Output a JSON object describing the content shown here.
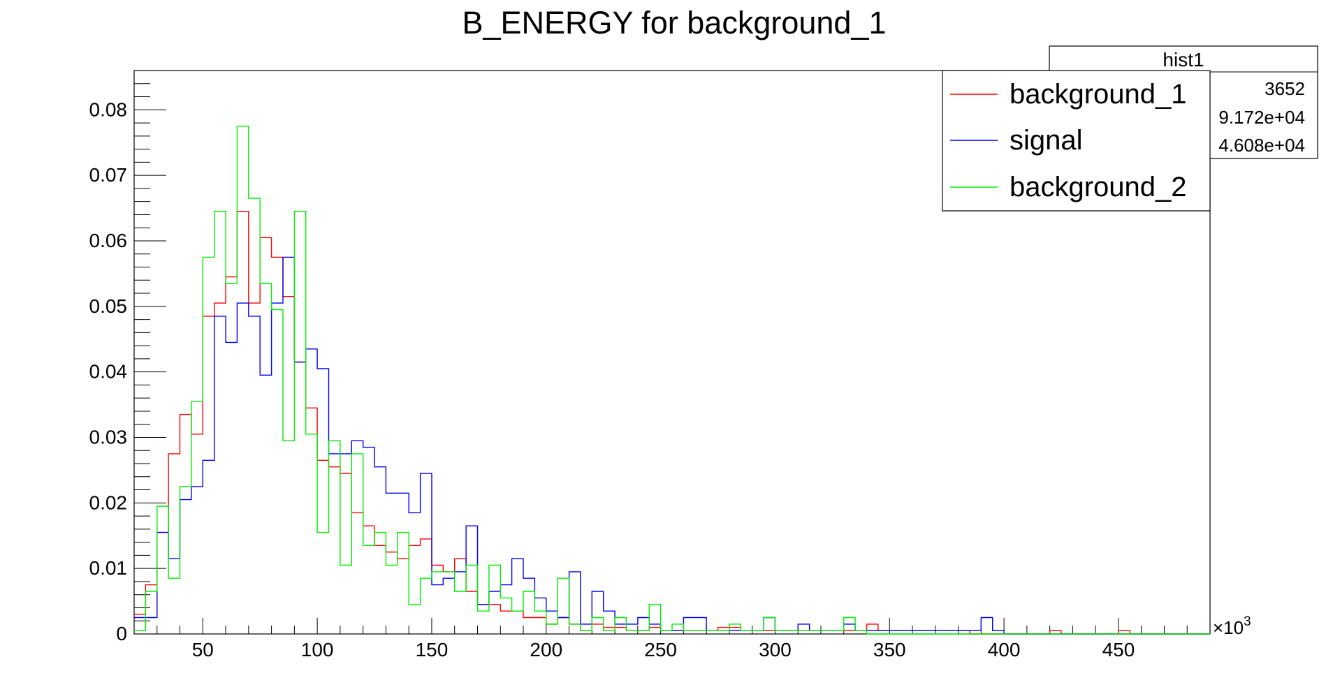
{
  "chart_data": {
    "type": "histogram",
    "title": "B_ENERGY for background_1",
    "xlabel": "",
    "ylabel": "",
    "xlim": [
      20,
      490
    ],
    "ylim": [
      0,
      0.086
    ],
    "x_scale_label": "×10",
    "x_scale_exponent": "3",
    "x_ticks": [
      "50",
      "100",
      "150",
      "200",
      "250",
      "300",
      "350",
      "400",
      "450"
    ],
    "y_ticks": [
      "0",
      "0.01",
      "0.02",
      "0.03",
      "0.04",
      "0.05",
      "0.06",
      "0.07",
      "0.08"
    ],
    "bin_start": 20,
    "bin_width": 5,
    "stats_box": {
      "title": "hist1",
      "values": [
        "3652",
        "9.172e+04",
        "4.608e+04"
      ]
    },
    "legend": {
      "position": "top-right",
      "entries": [
        "background_1",
        "signal",
        "background_2"
      ]
    },
    "series": [
      {
        "name": "background_1",
        "color": "#ff0000",
        "values": [
          0.003,
          0.0075,
          0.0155,
          0.0275,
          0.0335,
          0.0305,
          0.0485,
          0.0505,
          0.0545,
          0.0645,
          0.0505,
          0.0605,
          0.0575,
          0.0515,
          0.0415,
          0.0345,
          0.0265,
          0.0255,
          0.0245,
          0.0185,
          0.0165,
          0.0135,
          0.0125,
          0.0115,
          0.0135,
          0.0145,
          0.0105,
          0.0095,
          0.0115,
          0.0065,
          0.0045,
          0.0045,
          0.0035,
          0.0035,
          0.0025,
          0.0025,
          0.0015,
          0.0025,
          0.0015,
          0.0005,
          0.0015,
          0.001,
          0.001,
          0.0005,
          0.0005,
          0.001,
          0.0005,
          0.0005,
          0.0005,
          0.0005,
          0.0005,
          0.001,
          0.001,
          0.0005,
          0.0005,
          0.0005,
          0.0005,
          0.0005,
          0.0005,
          0.0005,
          0.0005,
          0.0005,
          0.0005,
          0.0005,
          0.0015,
          0.0005,
          0.0005,
          0.0005,
          0.0005,
          0.0005,
          0.0005,
          0.0005,
          0.0005,
          0,
          0,
          0,
          0,
          0,
          0,
          0,
          0.0005,
          0,
          0,
          0,
          0,
          0,
          0.0005,
          0,
          0,
          0,
          0,
          0,
          0,
          0
        ]
      },
      {
        "name": "signal",
        "color": "#0000ff",
        "values": [
          0.0025,
          0.0025,
          0.0155,
          0.0115,
          0.0205,
          0.0225,
          0.0265,
          0.0485,
          0.0445,
          0.0505,
          0.0485,
          0.0395,
          0.0505,
          0.0575,
          0.0415,
          0.0435,
          0.0405,
          0.0275,
          0.0275,
          0.0295,
          0.0285,
          0.0255,
          0.0215,
          0.0215,
          0.0185,
          0.0245,
          0.0075,
          0.0085,
          0.0095,
          0.0165,
          0.0045,
          0.0065,
          0.0075,
          0.0115,
          0.0085,
          0.0055,
          0.0035,
          0.0025,
          0.0095,
          0.0015,
          0.0065,
          0.0035,
          0.0015,
          0.0015,
          0.0025,
          0.0015,
          0.0005,
          0.0005,
          0.0025,
          0.0025,
          0.0005,
          0.0005,
          0.0005,
          0.0005,
          0.0005,
          0.0025,
          0.0005,
          0.0005,
          0.0015,
          0.0005,
          0.0005,
          0.0005,
          0.0015,
          0.0005,
          0.0005,
          0.0005,
          0.0005,
          0.0005,
          0.0005,
          0.0005,
          0.0005,
          0.0005,
          0.0005,
          0.0005,
          0.0025,
          0.0005,
          0,
          0,
          0,
          0,
          0,
          0,
          0,
          0,
          0,
          0,
          0,
          0,
          0,
          0,
          0,
          0,
          0,
          0
        ]
      },
      {
        "name": "background_2",
        "color": "#00ee00",
        "values": [
          0.0005,
          0.0065,
          0.0195,
          0.0085,
          0.0225,
          0.0355,
          0.0575,
          0.0645,
          0.0535,
          0.0775,
          0.0665,
          0.0535,
          0.0495,
          0.0295,
          0.0645,
          0.0305,
          0.0155,
          0.0295,
          0.0105,
          0.0275,
          0.0135,
          0.0155,
          0.0105,
          0.0155,
          0.0045,
          0.0085,
          0.0095,
          0.0095,
          0.0065,
          0.0105,
          0.0035,
          0.0105,
          0.0055,
          0.0035,
          0.0065,
          0.0035,
          0.0015,
          0.0085,
          0.0015,
          0.0005,
          0.0025,
          0.0005,
          0.0025,
          0.0005,
          0.0005,
          0.0045,
          0.0005,
          0.0015,
          0.0005,
          0.0005,
          0.0005,
          0.0005,
          0.0015,
          0.0005,
          0.0005,
          0.0025,
          0.0005,
          0.0005,
          0.0005,
          0.0005,
          0.0005,
          0.0005,
          0.0025,
          0.0005,
          0,
          0,
          0,
          0,
          0,
          0,
          0,
          0,
          0,
          0,
          0,
          0,
          0,
          0,
          0,
          0,
          0,
          0,
          0,
          0,
          0,
          0,
          0,
          0,
          0,
          0,
          0,
          0,
          0,
          0
        ]
      }
    ]
  }
}
